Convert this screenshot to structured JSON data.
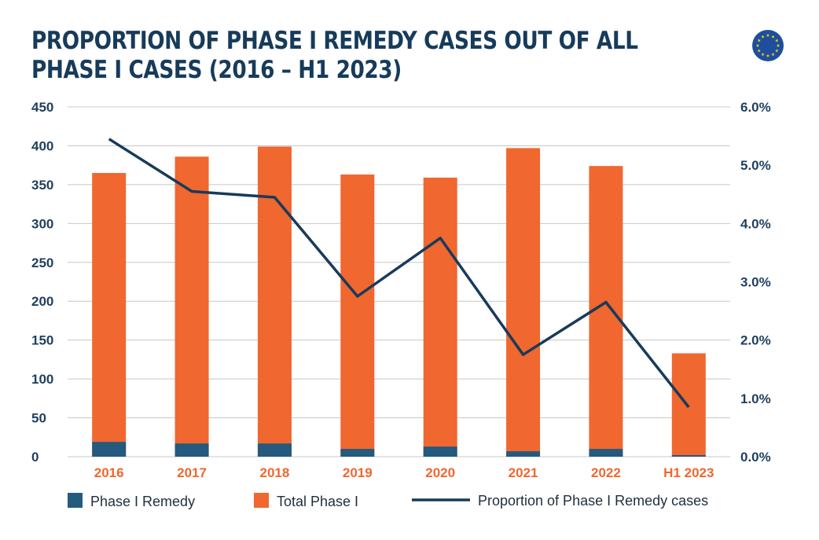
{
  "title_line1": "PROPORTION OF PHASE I REMEDY CASES OUT OF ALL",
  "title_line2": "PHASE I CASES (2016 – H1 2023)",
  "logo_icon": "eu-flag-icon",
  "colors": {
    "title": "#173b5a",
    "remedy_bar": "#245a7d",
    "total_bar": "#f0672f",
    "proportion_line": "#173b5a",
    "gridline": "#c8c8c8",
    "tick_text": "#1f3f5e",
    "category_text": "#f0672f",
    "flag_blue": "#1e4f9c",
    "flag_star": "#f2d01c"
  },
  "chart_data": {
    "type": "bar",
    "title": "PROPORTION OF PHASE I REMEDY CASES OUT OF ALL PHASE I CASES (2016 – H1 2023)",
    "categories": [
      "2016",
      "2017",
      "2018",
      "2019",
      "2020",
      "2021",
      "2022",
      "H1 2023"
    ],
    "stacked": false,
    "overlay": true,
    "series": [
      {
        "name": "Phase I Remedy",
        "type": "bar",
        "axis": "left",
        "values": [
          19,
          17,
          17,
          10,
          13,
          7,
          10,
          2
        ]
      },
      {
        "name": "Total Phase I",
        "type": "bar",
        "axis": "left",
        "values": [
          365,
          386,
          399,
          363,
          359,
          397,
          374,
          133
        ]
      },
      {
        "name": "Proportion of Phase I Remedy cases",
        "type": "line",
        "axis": "right",
        "values": [
          5.45,
          4.55,
          4.45,
          2.75,
          3.75,
          1.75,
          2.65,
          0.85
        ]
      }
    ],
    "ylim_left": [
      0,
      450
    ],
    "ylim_right": [
      0,
      6
    ],
    "yticks_left": [
      "450",
      "400",
      "350",
      "300",
      "250",
      "200",
      "150",
      "100",
      "50",
      "0"
    ],
    "yticks_right": [
      "6.0%",
      "5.0%",
      "4.0%",
      "3.0%",
      "2.0%",
      "1.0%",
      "0.0%"
    ],
    "grid": true,
    "legend_position": "bottom"
  }
}
